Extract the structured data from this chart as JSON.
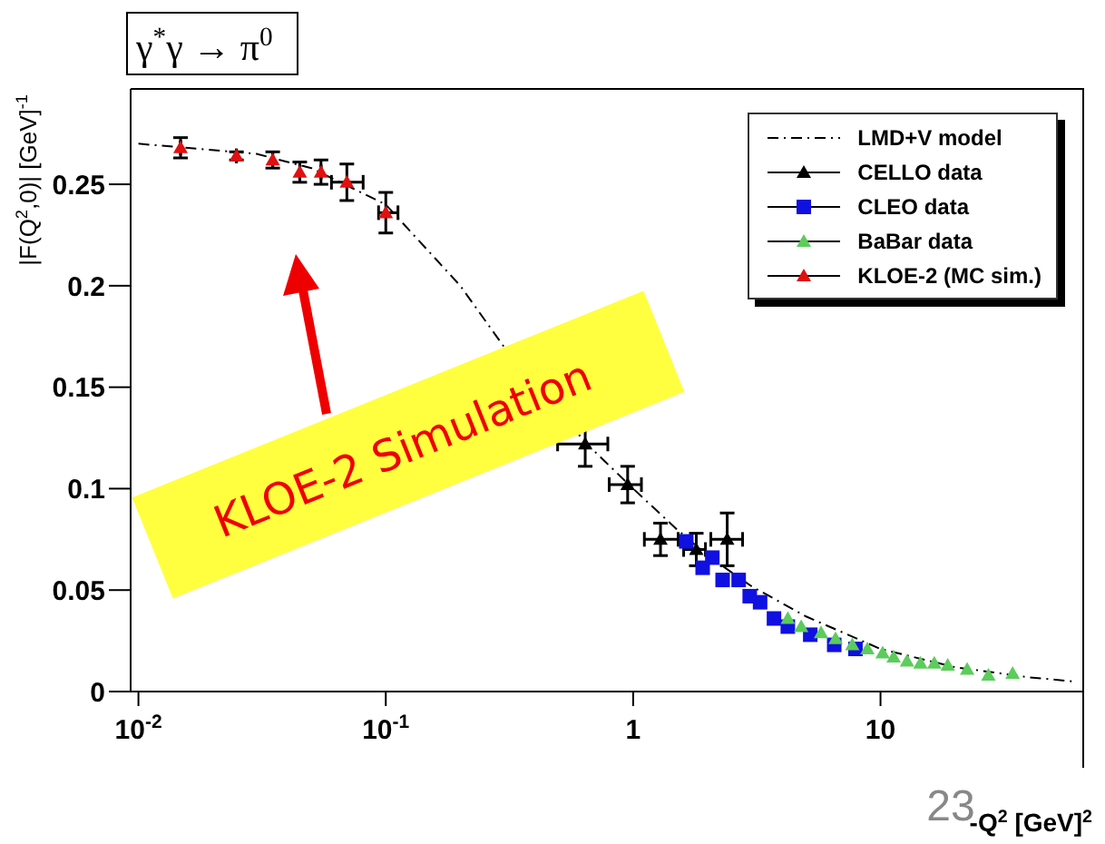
{
  "chart_data": {
    "type": "scatter",
    "title": "γ$^{*}$γ → π$^{0}$",
    "xlabel": "-Q$^{2}$ [GeV]$^{2}$",
    "ylabel": "|F(Q$^{2}$,0)| [GeV]$^{-1}$",
    "annotations": [
      "KLOE-2 Simulation",
      "23"
    ],
    "log": "x",
    "xlim": [
      0.0093,
      66
    ],
    "xticks": [
      {
        "value": 0.01,
        "label": "10$^{-2}$"
      },
      {
        "value": 0.1,
        "label": "10$^{-1}$"
      },
      1,
      10
    ],
    "ylim": [
      0,
      0.297
    ],
    "yticks": [
      0,
      0.05,
      0.1,
      0.15,
      0.2,
      0.25
    ],
    "legend": "top right",
    "series": [
      {
        "name": "LMD+V model",
        "type": "line",
        "marker": "none",
        "line_style": "dashed",
        "color": "#000000",
        "x": [
          0.01,
          0.03,
          0.05,
          0.1,
          0.2,
          0.3,
          0.65,
          1,
          1.5,
          2,
          3,
          5,
          10,
          20,
          40,
          60
        ],
        "values": [
          0.27,
          0.265,
          0.258,
          0.24,
          0.2,
          0.17,
          0.122,
          0.1,
          0.08,
          0.067,
          0.052,
          0.037,
          0.021,
          0.012,
          0.007,
          0.005
        ]
      },
      {
        "name": "CELLO data",
        "marker": "triangle",
        "color": "#000000",
        "x": [
          0.64,
          0.95,
          1.29,
          1.8,
          2.4
        ],
        "values": [
          0.122,
          0.102,
          0.075,
          0.07,
          0.075
        ],
        "errors": [
          0.011,
          0.009,
          0.008,
          0.008,
          0.013
        ],
        "xerrors": [
          [
            0.495,
            0.79
          ],
          [
            0.8,
            1.08
          ],
          [
            1.11,
            1.52
          ],
          [
            1.6,
            1.96
          ],
          [
            2.06,
            2.77
          ]
        ]
      },
      {
        "name": "CLEO data",
        "marker": "square",
        "color": "#1010e0",
        "x": [
          1.64,
          1.91,
          2.09,
          2.3,
          2.67,
          2.96,
          3.26,
          3.71,
          4.22,
          5.2,
          6.5,
          7.92
        ],
        "values": [
          0.074,
          0.061,
          0.066,
          0.055,
          0.055,
          0.047,
          0.044,
          0.036,
          0.032,
          0.028,
          0.023,
          0.021
        ]
      },
      {
        "name": "BaBar data",
        "marker": "triangle",
        "color": "#5ccc5c",
        "x": [
          4.22,
          4.78,
          5.75,
          6.58,
          7.69,
          8.85,
          10.2,
          11.3,
          12.8,
          14.5,
          16.5,
          18.7,
          22.4,
          27.3,
          34.2
        ],
        "values": [
          0.036,
          0.032,
          0.029,
          0.026,
          0.023,
          0.021,
          0.019,
          0.017,
          0.015,
          0.014,
          0.014,
          0.013,
          0.011,
          0.008,
          0.009
        ]
      },
      {
        "name": "KLOE-2 (MC sim.)",
        "marker": "triangle",
        "color": "#e01010",
        "x": [
          0.0148,
          0.0249,
          0.0349,
          0.0449,
          0.0547,
          0.0696,
          0.1
        ],
        "values": [
          0.268,
          0.264,
          0.262,
          0.256,
          0.256,
          0.251,
          0.236
        ],
        "errors": [
          0.005,
          0.002,
          0.004,
          0.005,
          0.006,
          0.009,
          0.01
        ],
        "xerrors": [
          null,
          null,
          null,
          null,
          null,
          [
            0.0603,
            0.081
          ],
          [
            0.0935,
            0.112
          ]
        ]
      }
    ]
  }
}
